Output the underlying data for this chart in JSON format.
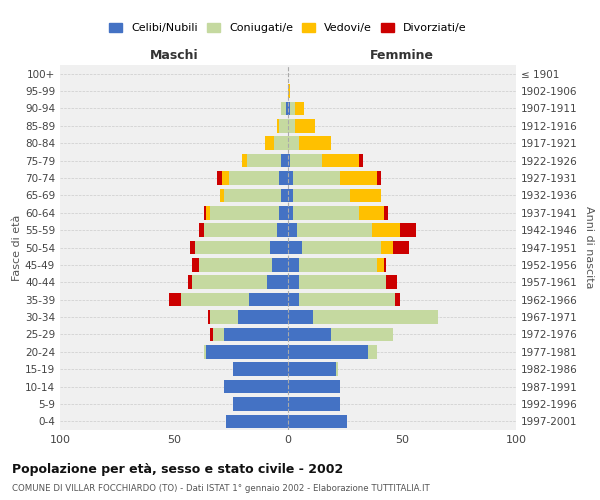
{
  "age_groups": [
    "0-4",
    "5-9",
    "10-14",
    "15-19",
    "20-24",
    "25-29",
    "30-34",
    "35-39",
    "40-44",
    "45-49",
    "50-54",
    "55-59",
    "60-64",
    "65-69",
    "70-74",
    "75-79",
    "80-84",
    "85-89",
    "90-94",
    "95-99",
    "100+"
  ],
  "birth_years": [
    "1997-2001",
    "1992-1996",
    "1987-1991",
    "1982-1986",
    "1977-1981",
    "1972-1976",
    "1967-1971",
    "1962-1966",
    "1957-1961",
    "1952-1956",
    "1947-1951",
    "1942-1946",
    "1937-1941",
    "1932-1936",
    "1927-1931",
    "1922-1926",
    "1917-1921",
    "1912-1916",
    "1907-1911",
    "1902-1906",
    "≤ 1901"
  ],
  "colors": {
    "celibe": "#4472c4",
    "coniugato": "#c5d9a0",
    "vedovo": "#ffc000",
    "divorziato": "#cc0000"
  },
  "males": {
    "celibe": [
      27,
      24,
      28,
      24,
      36,
      28,
      22,
      17,
      9,
      7,
      8,
      5,
      4,
      3,
      4,
      3,
      0,
      0,
      1,
      0,
      0
    ],
    "coniugato": [
      0,
      0,
      0,
      0,
      1,
      5,
      12,
      30,
      33,
      32,
      33,
      32,
      30,
      25,
      22,
      15,
      6,
      4,
      2,
      0,
      0
    ],
    "vedovo": [
      0,
      0,
      0,
      0,
      0,
      0,
      0,
      0,
      0,
      0,
      0,
      0,
      2,
      2,
      3,
      2,
      4,
      1,
      0,
      0,
      0
    ],
    "divorziato": [
      0,
      0,
      0,
      0,
      0,
      1,
      1,
      5,
      2,
      3,
      2,
      2,
      1,
      0,
      2,
      0,
      0,
      0,
      0,
      0,
      0
    ]
  },
  "females": {
    "nubile": [
      26,
      23,
      23,
      21,
      35,
      19,
      11,
      5,
      5,
      5,
      6,
      4,
      2,
      2,
      2,
      1,
      0,
      0,
      1,
      0,
      0
    ],
    "coniugata": [
      0,
      0,
      0,
      1,
      4,
      27,
      55,
      42,
      38,
      34,
      35,
      33,
      29,
      25,
      21,
      14,
      5,
      3,
      2,
      0,
      0
    ],
    "vedova": [
      0,
      0,
      0,
      0,
      0,
      0,
      0,
      0,
      0,
      3,
      5,
      12,
      11,
      14,
      16,
      16,
      14,
      9,
      4,
      1,
      0
    ],
    "divorziata": [
      0,
      0,
      0,
      0,
      0,
      0,
      0,
      2,
      5,
      1,
      7,
      7,
      2,
      0,
      2,
      2,
      0,
      0,
      0,
      0,
      0
    ]
  },
  "xlim": 100,
  "title": "Popolazione per età, sesso e stato civile - 2002",
  "subtitle": "COMUNE DI VILLAR FOCCHIARDO (TO) - Dati ISTAT 1° gennaio 2002 - Elaborazione TUTTITALIA.IT",
  "ylabel_left": "Fasce di età",
  "ylabel_right": "Anni di nascita",
  "xlabel_left": "Maschi",
  "xlabel_right": "Femmine",
  "background_color": "#ffffff",
  "grid_color": "#cccccc"
}
